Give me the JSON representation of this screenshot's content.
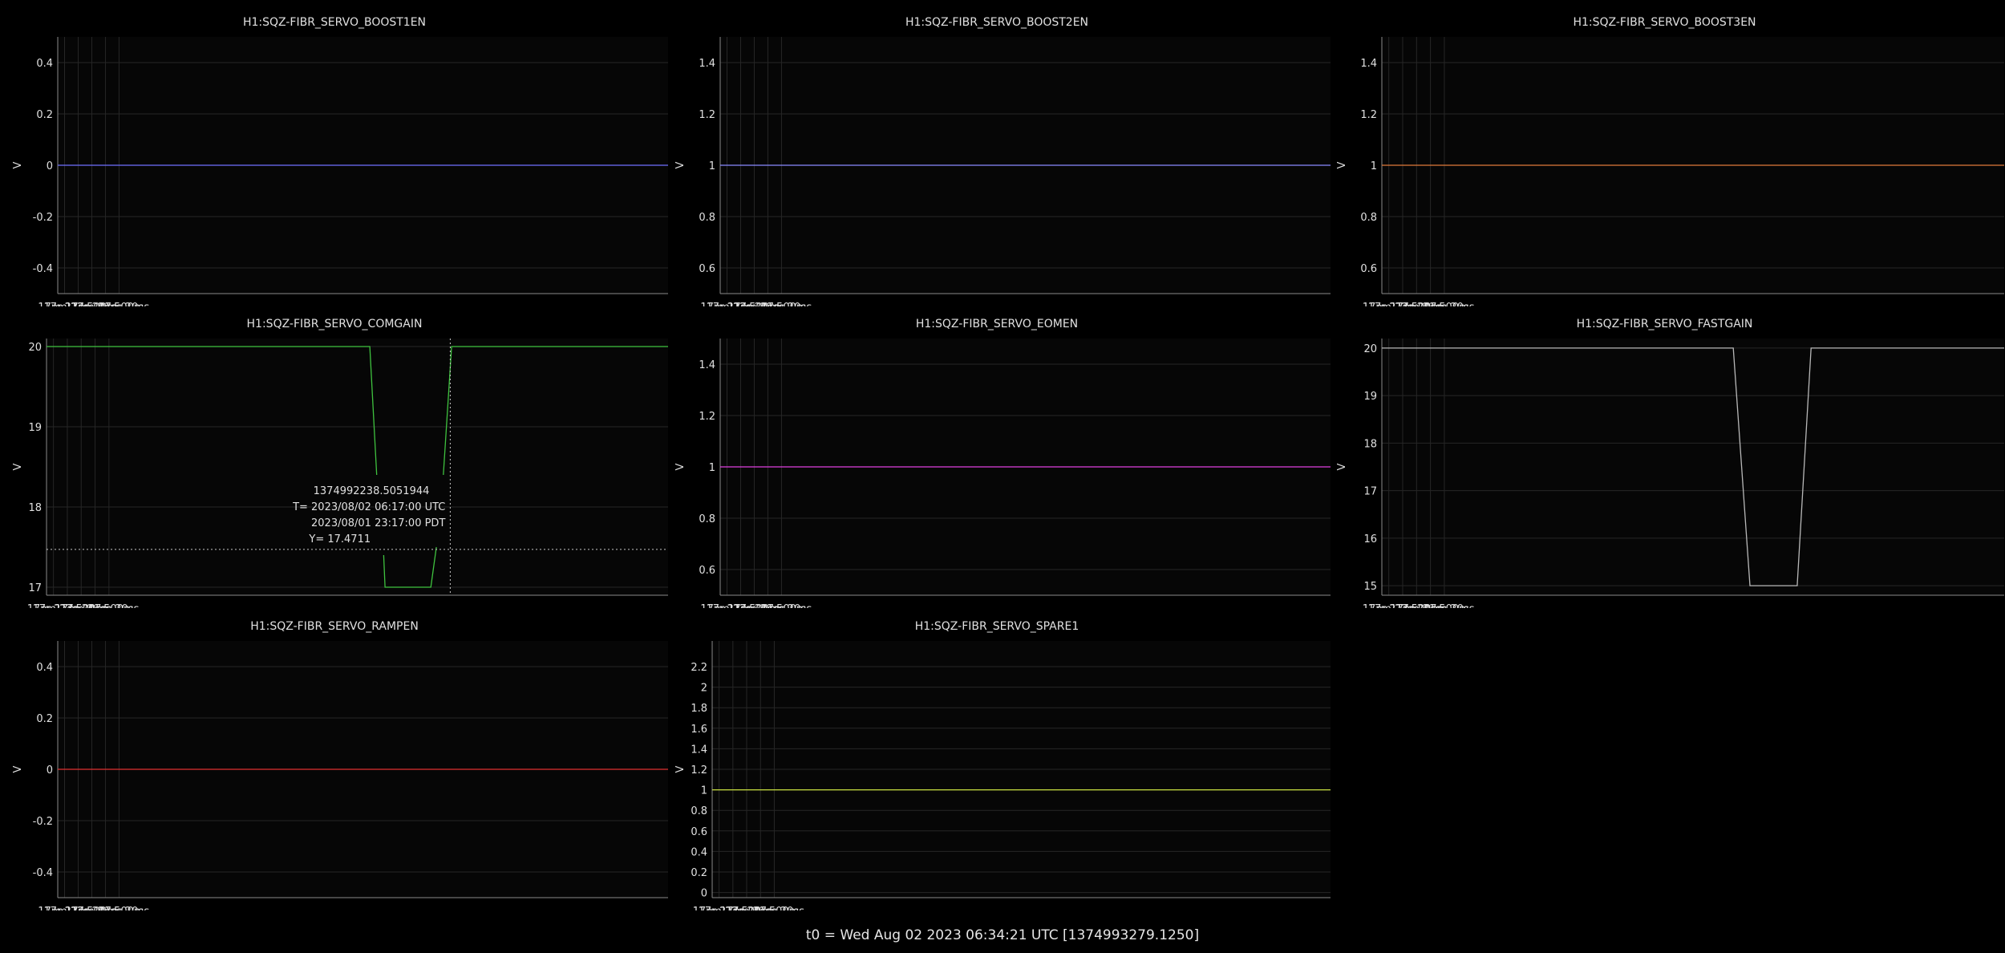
{
  "footer": {
    "t0": "t0 = Wed Aug 02 2023 06:34:21 UTC [1374993279.1250]"
  },
  "theme": {
    "background": "#000000",
    "plot_background": "#060606",
    "grid": "#262626",
    "axis": "#8a8a8a",
    "text": "#e0e0e0"
  },
  "chart_data": [
    {
      "type": "line",
      "title": "H1:SQZ-FIBR_SERVO_BOOST1EN",
      "ylabel": "V",
      "xlabel": "",
      "xlim": [
        -1342.25,
        -1319.85
      ],
      "ylim": [
        -0.5,
        0.5
      ],
      "x_ticks": [
        -1342,
        -1341.5,
        -1341,
        -1340.5,
        -1340
      ],
      "x_tick_labels": [
        "-17m,22s",
        "-17m,21s,500ms",
        "-17m,21s",
        "-17m,20s,500ms",
        "-17m,20s"
      ],
      "y_ticks": [
        -0.4,
        -0.2,
        0,
        0.2,
        0.4
      ],
      "y_tick_labels": [
        "-0.4",
        "-0.2",
        "0",
        "0.2",
        "0.4"
      ],
      "grid": true,
      "series": [
        {
          "color": "#6f6fff",
          "x": [
            -1342.25,
            -1319.85
          ],
          "y": [
            0,
            0
          ]
        }
      ]
    },
    {
      "type": "line",
      "title": "H1:SQZ-FIBR_SERVO_BOOST2EN",
      "ylabel": "V",
      "xlabel": "",
      "xlim": [
        -1342.25,
        -1319.85
      ],
      "ylim": [
        0.5,
        1.5
      ],
      "x_ticks": [
        -1342,
        -1341.5,
        -1341,
        -1340.5,
        -1340
      ],
      "x_tick_labels": [
        "-17m,22s",
        "-17m,21s,500ms",
        "-17m,21s",
        "-17m,20s,500ms",
        "-17m,20s"
      ],
      "y_ticks": [
        0.6,
        0.8,
        1,
        1.2,
        1.4
      ],
      "y_tick_labels": [
        "0.6",
        "0.8",
        "1",
        "1.2",
        "1.4"
      ],
      "grid": true,
      "series": [
        {
          "color": "#8a8aff",
          "x": [
            -1342.25,
            -1319.85
          ],
          "y": [
            1,
            1
          ]
        }
      ]
    },
    {
      "type": "line",
      "title": "H1:SQZ-FIBR_SERVO_BOOST3EN",
      "ylabel": "V",
      "xlabel": "",
      "xlim": [
        -1342.25,
        -1319.85
      ],
      "ylim": [
        0.5,
        1.5
      ],
      "x_ticks": [
        -1342,
        -1341.5,
        -1341,
        -1340.5,
        -1340
      ],
      "x_tick_labels": [
        "-17m,22s",
        "-17m,21s,500ms",
        "-17m,21s",
        "-17m,20s,500ms",
        "-17m,20s"
      ],
      "y_ticks": [
        0.6,
        0.8,
        1,
        1.2,
        1.4
      ],
      "y_tick_labels": [
        "0.6",
        "0.8",
        "1",
        "1.2",
        "1.4"
      ],
      "grid": true,
      "series": [
        {
          "color": "#e07a3a",
          "x": [
            -1342.25,
            -1319.85
          ],
          "y": [
            1,
            1
          ]
        }
      ]
    },
    {
      "type": "line",
      "title": "H1:SQZ-FIBR_SERVO_COMGAIN",
      "ylabel": "V",
      "xlabel": "",
      "xlim": [
        -1342.25,
        -1319.85
      ],
      "ylim": [
        16.9,
        20.1
      ],
      "x_ticks": [
        -1342,
        -1341.5,
        -1341,
        -1340.5,
        -1340
      ],
      "x_tick_labels": [
        "-17m,22s",
        "-17m,21s,500ms",
        "-17m,21s",
        "-17m,20s,500ms",
        "-17m,20s"
      ],
      "y_ticks": [
        17,
        18,
        19,
        20
      ],
      "y_tick_labels": [
        "17",
        "18",
        "19",
        "20"
      ],
      "grid": true,
      "series": [
        {
          "color": "#3fc23f",
          "x": [
            -1342.25,
            -1330.6,
            -1330.35
          ],
          "y": [
            20,
            20,
            18.4
          ]
        },
        {
          "color": "#3fc23f",
          "x": [
            -1330.1,
            -1330.05,
            -1328.4,
            -1328.2
          ],
          "y": [
            17.4,
            17,
            17,
            17.5
          ]
        },
        {
          "color": "#3fc23f",
          "x": [
            -1327.95,
            -1327.65,
            -1319.85
          ],
          "y": [
            18.4,
            20,
            20
          ]
        }
      ],
      "crosshair": {
        "x": -1327.7,
        "y": 17.4711,
        "lines": [
          "1374992238.5051944",
          "T= 2023/08/02 06:17:00 UTC",
          "2023/08/01 23:17:00 PDT",
          "Y= 17.4711"
        ]
      }
    },
    {
      "type": "line",
      "title": "H1:SQZ-FIBR_SERVO_EOMEN",
      "ylabel": "V",
      "xlabel": "",
      "xlim": [
        -1342.25,
        -1319.85
      ],
      "ylim": [
        0.5,
        1.5
      ],
      "x_ticks": [
        -1342,
        -1341.5,
        -1341,
        -1340.5,
        -1340
      ],
      "x_tick_labels": [
        "-17m,22s",
        "-17m,21s,500ms",
        "-17m,21s",
        "-17m,20s,500ms",
        "-17m,20s"
      ],
      "y_ticks": [
        0.6,
        0.8,
        1,
        1.2,
        1.4
      ],
      "y_tick_labels": [
        "0.6",
        "0.8",
        "1",
        "1.2",
        "1.4"
      ],
      "grid": true,
      "series": [
        {
          "color": "#e040e0",
          "x": [
            -1342.25,
            -1319.85
          ],
          "y": [
            1,
            1
          ]
        }
      ]
    },
    {
      "type": "line",
      "title": "H1:SQZ-FIBR_SERVO_FASTGAIN",
      "ylabel": "V",
      "xlabel": "",
      "xlim": [
        -1342.25,
        -1319.85
      ],
      "ylim": [
        14.8,
        20.2
      ],
      "x_ticks": [
        -1342,
        -1341.5,
        -1341,
        -1340.5,
        -1340
      ],
      "x_tick_labels": [
        "-17m,22s",
        "-17m,21s,500ms",
        "-17m,21s",
        "-17m,20s,500ms",
        "-17m,20s"
      ],
      "y_ticks": [
        15,
        16,
        17,
        18,
        19,
        20
      ],
      "y_tick_labels": [
        "15",
        "16",
        "17",
        "18",
        "19",
        "20"
      ],
      "grid": true,
      "series": [
        {
          "color": "#b8b8b8",
          "x": [
            -1342.25,
            -1329.6,
            -1329.0,
            -1327.3,
            -1326.8,
            -1319.85
          ],
          "y": [
            20,
            20,
            15,
            15,
            20,
            20
          ]
        }
      ]
    },
    {
      "type": "line",
      "title": "H1:SQZ-FIBR_SERVO_RAMPEN",
      "ylabel": "V",
      "xlabel": "",
      "xlim": [
        -1342.25,
        -1319.85
      ],
      "ylim": [
        -0.5,
        0.5
      ],
      "x_ticks": [
        -1342,
        -1341.5,
        -1341,
        -1340.5,
        -1340
      ],
      "x_tick_labels": [
        "-17m,22s",
        "-17m,21s,500ms",
        "-17m,21s",
        "-17m,20s,500ms",
        "-17m,20s"
      ],
      "y_ticks": [
        -0.4,
        -0.2,
        0,
        0.2,
        0.4
      ],
      "y_tick_labels": [
        "-0.4",
        "-0.2",
        "0",
        "0.2",
        "0.4"
      ],
      "grid": true,
      "series": [
        {
          "color": "#e03030",
          "x": [
            -1342.25,
            -1319.85
          ],
          "y": [
            0,
            0
          ]
        }
      ]
    },
    {
      "type": "line",
      "title": "H1:SQZ-FIBR_SERVO_SPARE1",
      "ylabel": "V",
      "xlabel": "",
      "xlim": [
        -1342.25,
        -1319.85
      ],
      "ylim": [
        -0.05,
        2.45
      ],
      "x_ticks": [
        -1342,
        -1341.5,
        -1341,
        -1340.5,
        -1340
      ],
      "x_tick_labels": [
        "-17m,22s",
        "-17m,21s,500ms",
        "-17m,21s",
        "-17m,20s,500ms",
        "-17m,20s"
      ],
      "y_ticks": [
        0,
        0.2,
        0.4,
        0.6,
        0.8,
        1,
        1.2,
        1.4,
        1.6,
        1.8,
        2,
        2.2
      ],
      "y_tick_labels": [
        "0",
        "0.2",
        "0.4",
        "0.6",
        "0.8",
        "1",
        "1.2",
        "1.4",
        "1.6",
        "1.8",
        "2",
        "2.2"
      ],
      "grid": true,
      "series": [
        {
          "color": "#c8e040",
          "x": [
            -1342.25,
            -1319.85
          ],
          "y": [
            1,
            1
          ]
        }
      ]
    }
  ]
}
